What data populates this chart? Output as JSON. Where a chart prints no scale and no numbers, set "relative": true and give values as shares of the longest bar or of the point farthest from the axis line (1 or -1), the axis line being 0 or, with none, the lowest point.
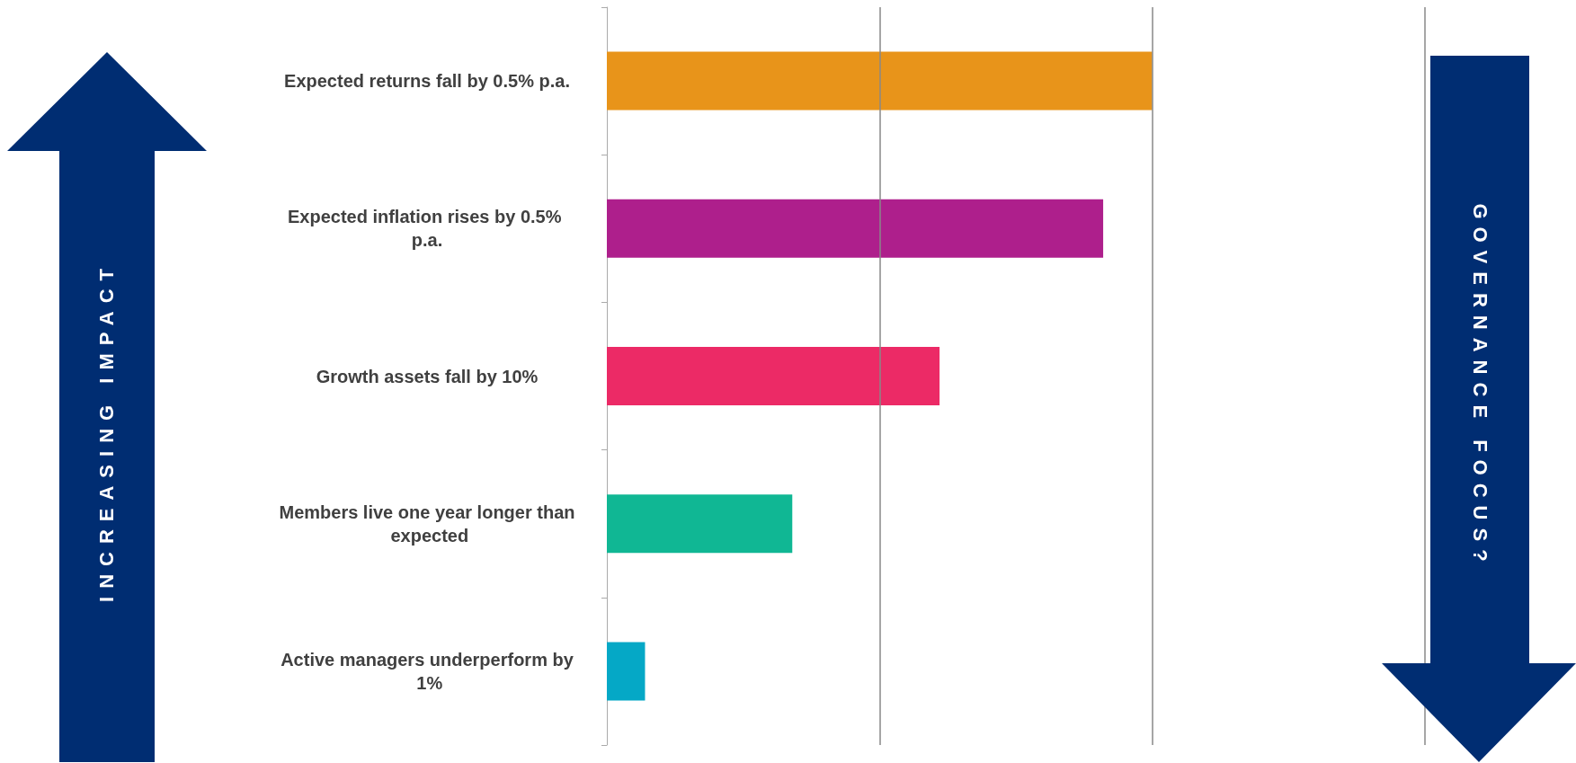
{
  "chart_data": {
    "type": "bar",
    "orientation": "horizontal",
    "relative": true,
    "ref_lines": [
      {
        "axis": "x",
        "value": 0.5,
        "color": "#888888"
      },
      {
        "axis": "x",
        "value": 1,
        "color": "#888888"
      },
      {
        "axis": "x",
        "value": 1.5,
        "color": "#888888"
      }
    ],
    "categories": [
      "Expected returns fall by 0.5% p.a.",
      "Expected inflation rises by 0.5% p.a.",
      "Growth assets fall by 10%",
      "Members live one year longer than expected",
      "Active managers underperform by 1%"
    ],
    "values": [
      1,
      0.91,
      0.61,
      0.34,
      0.07
    ],
    "colors": [
      "#e8941a",
      "#ae1f8c",
      "#ec2a66",
      "#10b794",
      "#05a8c6"
    ],
    "annotations": [
      "INCREASING IMPACT",
      "GOVERNANCE FOCUS?"
    ]
  }
}
